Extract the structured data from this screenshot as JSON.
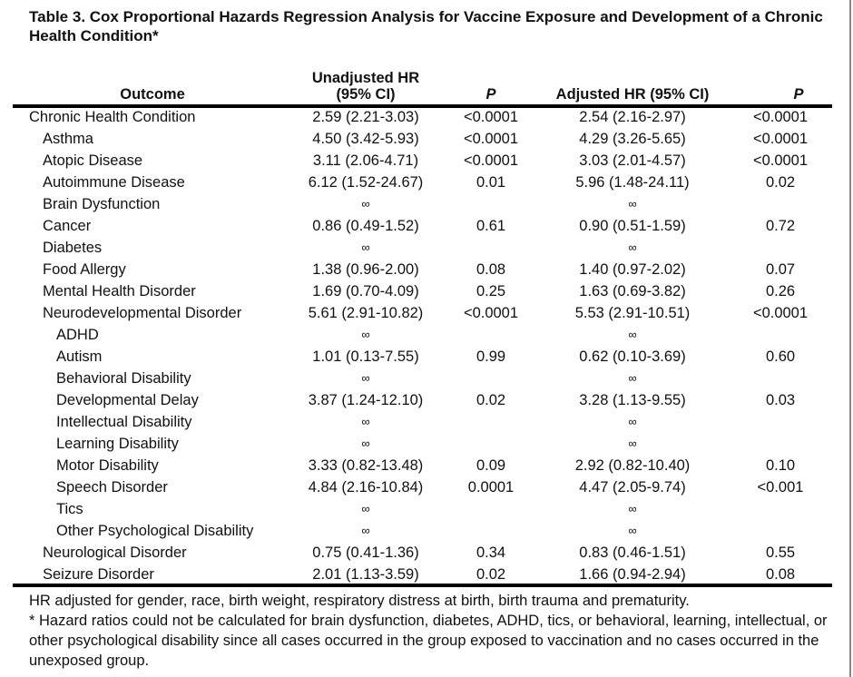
{
  "title": "Table 3. Cox Proportional Hazards Regression Analysis for Vaccine Exposure and Development of a Chronic Health Condition*",
  "headers": {
    "outcome": "Outcome",
    "unadjusted_line1": "Unadjusted HR",
    "unadjusted_line2": "(95% CI)",
    "p1": "P",
    "adjusted": "Adjusted HR (95% CI)",
    "p2": "P"
  },
  "rows": [
    {
      "outcome": "Chronic Health Condition",
      "level": 0,
      "unadj": "2.59 (2.21-3.03)",
      "p1": "<0.0001",
      "adj": "2.54 (2.16-2.97)",
      "p2": "<0.0001"
    },
    {
      "outcome": "Asthma",
      "level": 1,
      "unadj": "4.50 (3.42-5.93)",
      "p1": "<0.0001",
      "adj": "4.29 (3.26-5.65)",
      "p2": "<0.0001"
    },
    {
      "outcome": "Atopic Disease",
      "level": 1,
      "unadj": "3.11 (2.06-4.71)",
      "p1": "<0.0001",
      "adj": "3.03 (2.01-4.57)",
      "p2": "<0.0001"
    },
    {
      "outcome": "Autoimmune Disease",
      "level": 1,
      "unadj": "6.12 (1.52-24.67)",
      "p1": "0.01",
      "adj": "5.96 (1.48-24.11)",
      "p2": "0.02"
    },
    {
      "outcome": "Brain Dysfunction",
      "level": 1,
      "unadj": "∞",
      "p1": "",
      "adj": "∞",
      "p2": ""
    },
    {
      "outcome": "Cancer",
      "level": 1,
      "unadj": "0.86 (0.49-1.52)",
      "p1": "0.61",
      "adj": "0.90 (0.51-1.59)",
      "p2": "0.72"
    },
    {
      "outcome": "Diabetes",
      "level": 1,
      "unadj": "∞",
      "p1": "",
      "adj": "∞",
      "p2": ""
    },
    {
      "outcome": "Food Allergy",
      "level": 1,
      "unadj": "1.38 (0.96-2.00)",
      "p1": "0.08",
      "adj": "1.40 (0.97-2.02)",
      "p2": "0.07"
    },
    {
      "outcome": "Mental Health Disorder",
      "level": 1,
      "unadj": "1.69 (0.70-4.09)",
      "p1": "0.25",
      "adj": "1.63 (0.69-3.82)",
      "p2": "0.26"
    },
    {
      "outcome": "Neurodevelopmental Disorder",
      "level": 1,
      "unadj": "5.61 (2.91-10.82)",
      "p1": "<0.0001",
      "adj": "5.53 (2.91-10.51)",
      "p2": "<0.0001"
    },
    {
      "outcome": "ADHD",
      "level": 2,
      "unadj": "∞",
      "p1": "",
      "adj": "∞",
      "p2": ""
    },
    {
      "outcome": "Autism",
      "level": 2,
      "unadj": "1.01 (0.13-7.55)",
      "p1": "0.99",
      "adj": "0.62 (0.10-3.69)",
      "p2": "0.60"
    },
    {
      "outcome": "Behavioral Disability",
      "level": 2,
      "unadj": "∞",
      "p1": "",
      "adj": "∞",
      "p2": ""
    },
    {
      "outcome": "Developmental Delay",
      "level": 2,
      "unadj": "3.87 (1.24-12.10)",
      "p1": "0.02",
      "adj": "3.28 (1.13-9.55)",
      "p2": "0.03"
    },
    {
      "outcome": "Intellectual Disability",
      "level": 2,
      "unadj": "∞",
      "p1": "",
      "adj": "∞",
      "p2": ""
    },
    {
      "outcome": "Learning Disability",
      "level": 2,
      "unadj": "∞",
      "p1": "",
      "adj": "∞",
      "p2": ""
    },
    {
      "outcome": "Motor Disability",
      "level": 2,
      "unadj": "3.33 (0.82-13.48)",
      "p1": "0.09",
      "adj": "2.92 (0.82-10.40)",
      "p2": "0.10"
    },
    {
      "outcome": "Speech Disorder",
      "level": 2,
      "unadj": "4.84 (2.16-10.84)",
      "p1": "0.0001",
      "adj": "4.47 (2.05-9.74)",
      "p2": "<0.001"
    },
    {
      "outcome": "Tics",
      "level": 2,
      "unadj": "∞",
      "p1": "",
      "adj": "∞",
      "p2": ""
    },
    {
      "outcome": "Other Psychological Disability",
      "level": 2,
      "unadj": "∞",
      "p1": "",
      "adj": "∞",
      "p2": ""
    },
    {
      "outcome": "Neurological Disorder",
      "level": 1,
      "unadj": "0.75 (0.41-1.36)",
      "p1": "0.34",
      "adj": "0.83 (0.46-1.51)",
      "p2": "0.55"
    },
    {
      "outcome": "Seizure Disorder",
      "level": 1,
      "unadj": "2.01 (1.13-3.59)",
      "p1": "0.02",
      "adj": "1.66 (0.94-2.94)",
      "p2": "0.08"
    }
  ],
  "footnotes": [
    "HR adjusted for gender, race, birth weight, respiratory distress at birth, birth trauma and prematurity.",
    "* Hazard ratios could not be calculated for brain dysfunction, diabetes, ADHD, tics, or behavioral, learning, intellectual, or other psychological disability since all cases occurred in the group exposed to vaccination and no cases occurred in the unexposed group."
  ]
}
